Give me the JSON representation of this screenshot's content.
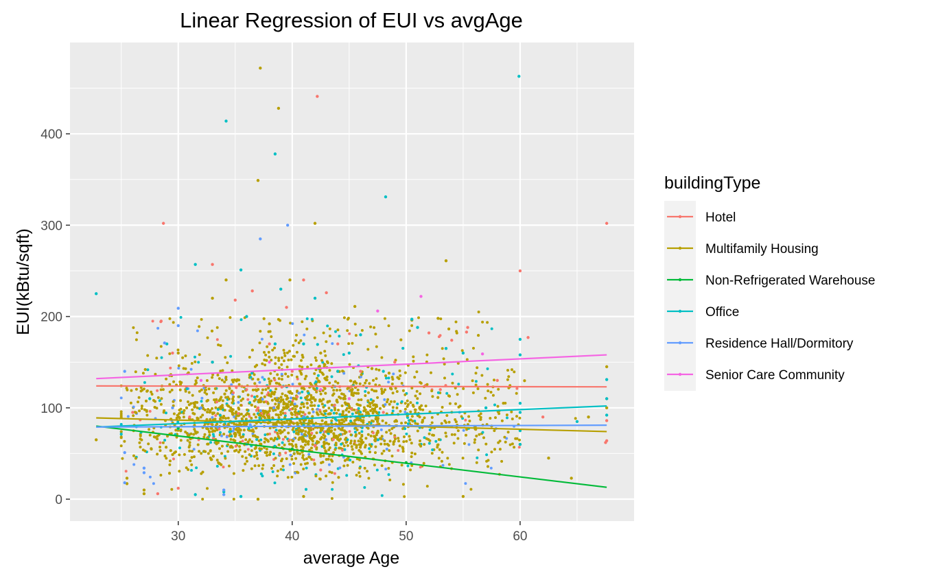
{
  "chart_data": {
    "type": "scatter",
    "title": "Linear Regression of EUI vs avgAge",
    "xlabel": "average Age",
    "ylabel": "EUI(kBtu/sqft)",
    "xlim": [
      20.5,
      70
    ],
    "ylim": [
      -24,
      500
    ],
    "x_ticks": [
      30,
      40,
      50,
      60
    ],
    "y_ticks": [
      0,
      100,
      200,
      300,
      400
    ],
    "grid": true,
    "legend": {
      "title": "buildingType",
      "position": "right"
    },
    "series": [
      {
        "name": "Hotel",
        "color": "#F8766D",
        "fit": [
          [
            22.8,
            124
          ],
          [
            67.6,
            123
          ]
        ],
        "points": [
          [
            28.7,
            302
          ],
          [
            28.5,
            195
          ],
          [
            33,
            257
          ],
          [
            35,
            218
          ],
          [
            36.5,
            228
          ],
          [
            39.5,
            210
          ],
          [
            41,
            240
          ],
          [
            42.2,
            441
          ],
          [
            43,
            226
          ],
          [
            55.4,
            188
          ],
          [
            55.3,
            183
          ],
          [
            52,
            182
          ],
          [
            54,
            174
          ],
          [
            60,
            250
          ],
          [
            60.7,
            177
          ],
          [
            67.6,
            302
          ],
          [
            67.6,
            110
          ],
          [
            67.6,
            86
          ],
          [
            67.6,
            64
          ],
          [
            67.5,
            62
          ],
          [
            28.2,
            6
          ],
          [
            30,
            12
          ],
          [
            38,
            170
          ],
          [
            44,
            170
          ],
          [
            49,
            150
          ],
          [
            40,
            140
          ],
          [
            33,
            150
          ],
          [
            45,
            110
          ],
          [
            36,
            120
          ],
          [
            29.5,
            160
          ],
          [
            58,
            130
          ],
          [
            42.5,
            32
          ],
          [
            37,
            100
          ],
          [
            48,
            95
          ],
          [
            62,
            90
          ],
          [
            26,
            95
          ],
          [
            46,
            140
          ],
          [
            53,
            120
          ],
          [
            31,
            90
          ]
        ]
      },
      {
        "name": "Multifamily Housing",
        "color": "#B79F00",
        "fit": [
          [
            22.8,
            89
          ],
          [
            67.6,
            74
          ]
        ],
        "points": [
          [
            37.2,
            472
          ],
          [
            38.8,
            428
          ],
          [
            37,
            349
          ],
          [
            42,
            302
          ],
          [
            53.5,
            261
          ],
          [
            34.2,
            240
          ],
          [
            39.8,
            240
          ],
          [
            33,
            220
          ],
          [
            45.5,
            211
          ],
          [
            52.8,
            198
          ],
          [
            38,
            192
          ],
          [
            50.5,
            196
          ],
          [
            22.8,
            65
          ],
          [
            25.5,
            23
          ],
          [
            25.5,
            17
          ],
          [
            27,
            10
          ],
          [
            27,
            6
          ],
          [
            64.5,
            23
          ],
          [
            67.6,
            145
          ],
          [
            67.6,
            100
          ],
          [
            57.5,
            80
          ],
          [
            60,
            60
          ],
          [
            62.5,
            45
          ],
          [
            66,
            90
          ],
          [
            55,
            3
          ],
          [
            37,
            0
          ],
          [
            41,
            3
          ],
          [
            44,
            140
          ],
          [
            30,
            160
          ],
          [
            42.5,
            160
          ],
          [
            47,
            143
          ],
          [
            48.5,
            138
          ]
        ]
      },
      {
        "name": "Non-Refrigerated Warehouse",
        "color": "#00BA38",
        "fit": [
          [
            22.8,
            80
          ],
          [
            67.6,
            13
          ]
        ],
        "points": [
          [
            30,
            78
          ],
          [
            40,
            55
          ],
          [
            50,
            40
          ]
        ]
      },
      {
        "name": "Office",
        "color": "#00BFC4",
        "fit": [
          [
            22.8,
            79
          ],
          [
            67.6,
            102
          ]
        ],
        "points": [
          [
            22.8,
            225
          ],
          [
            34.2,
            414
          ],
          [
            38.5,
            378
          ],
          [
            48.2,
            331
          ],
          [
            59.9,
            463
          ],
          [
            31.5,
            257
          ],
          [
            35.5,
            251
          ],
          [
            39,
            230
          ],
          [
            42,
            220
          ],
          [
            50.5,
            197
          ],
          [
            51,
            188
          ],
          [
            53.5,
            165
          ],
          [
            55,
            160
          ],
          [
            60,
            175
          ],
          [
            60,
            158
          ],
          [
            60,
            105
          ],
          [
            60,
            95
          ],
          [
            60,
            75
          ],
          [
            60,
            60
          ],
          [
            67.6,
            131
          ],
          [
            67.6,
            110
          ],
          [
            67.6,
            92
          ],
          [
            31.5,
            5
          ],
          [
            35.5,
            3
          ],
          [
            34,
            8
          ],
          [
            29,
            170
          ],
          [
            41,
            170
          ],
          [
            46,
            180
          ],
          [
            48,
            140
          ],
          [
            33,
            150
          ],
          [
            36,
            200
          ],
          [
            44,
            140
          ],
          [
            27.5,
            110
          ],
          [
            57,
            100
          ],
          [
            65,
            85
          ],
          [
            38.5,
            170
          ],
          [
            45,
            160
          ]
        ]
      },
      {
        "name": "Residence Hall/Dormitory",
        "color": "#619CFF",
        "fit": [
          [
            22.8,
            79
          ],
          [
            67.6,
            81
          ]
        ],
        "points": [
          [
            39.6,
            300
          ],
          [
            37.2,
            285
          ],
          [
            30,
            209
          ],
          [
            30,
            190
          ],
          [
            28.8,
            171
          ],
          [
            25.3,
            140
          ],
          [
            25.3,
            51
          ],
          [
            25.3,
            18
          ],
          [
            27,
            34
          ],
          [
            27,
            29
          ],
          [
            34,
            10
          ],
          [
            34,
            5
          ],
          [
            36,
            60
          ],
          [
            41,
            90
          ],
          [
            29.5,
            100
          ],
          [
            32,
            100
          ],
          [
            44,
            80
          ]
        ]
      },
      {
        "name": "Senior Care Community",
        "color": "#F564E3",
        "fit": [
          [
            22.8,
            132
          ],
          [
            67.6,
            158
          ]
        ],
        "points": [
          [
            51.3,
            222
          ],
          [
            47.5,
            206
          ],
          [
            56.7,
            159
          ],
          [
            38,
            150
          ],
          [
            42.5,
            120
          ],
          [
            32,
            130
          ],
          [
            45,
            110
          ]
        ]
      }
    ]
  }
}
